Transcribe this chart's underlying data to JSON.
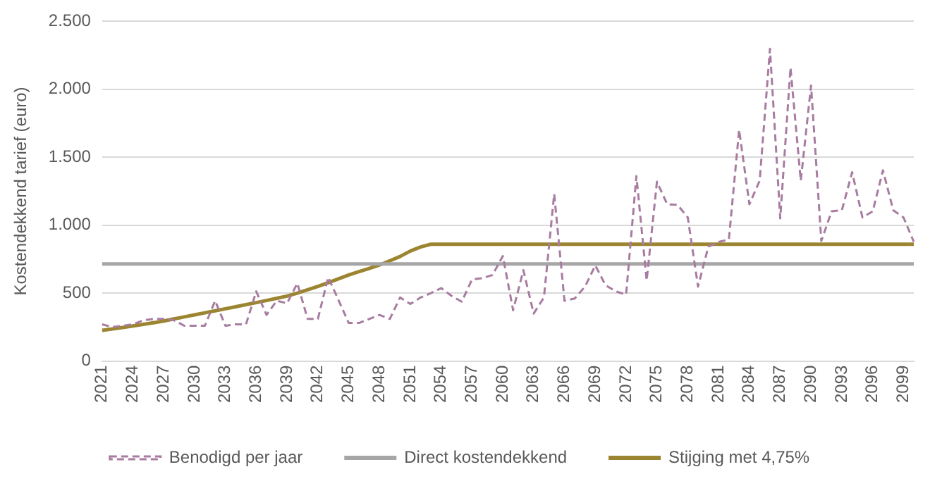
{
  "chart_data": {
    "type": "line",
    "ylabel": "Kostendekkend tarief (euro)",
    "categories": [
      "2021",
      null,
      null,
      "2024",
      null,
      null,
      "2027",
      null,
      null,
      "2030",
      null,
      null,
      "2033",
      null,
      null,
      "2036",
      null,
      null,
      "2039",
      null,
      null,
      "2042",
      null,
      null,
      "2045",
      null,
      null,
      "2048",
      null,
      null,
      "2051",
      null,
      null,
      "2054",
      null,
      null,
      "2057",
      null,
      null,
      "2060",
      null,
      null,
      "2063",
      null,
      null,
      "2066",
      null,
      null,
      "2069",
      null,
      null,
      "2072",
      null,
      null,
      "2075",
      null,
      null,
      "2078",
      null,
      null,
      "2081",
      null,
      null,
      "2084",
      null,
      null,
      "2087",
      null,
      null,
      "2090",
      null,
      null,
      "2093",
      null,
      null,
      "2096",
      null,
      null,
      "2099",
      null
    ],
    "series": [
      {
        "name": "Benodigd per jaar",
        "color": "#a87ca0",
        "line_style": "dashed",
        "values": [
          270,
          250,
          260,
          270,
          300,
          310,
          310,
          300,
          260,
          260,
          260,
          444,
          260,
          270,
          270,
          513,
          340,
          444,
          425,
          572,
          310,
          310,
          617,
          450,
          280,
          280,
          310,
          340,
          310,
          468,
          420,
          468,
          500,
          537,
          480,
          437,
          600,
          610,
          634,
          773,
          374,
          669,
          350,
          468,
          1230,
          444,
          461,
          548,
          704,
          558,
          513,
          489,
          1362,
          593,
          1320,
          1154,
          1150,
          1057,
          548,
          842,
          877,
          894,
          1702,
          1154,
          1328,
          2298,
          1050,
          2160,
          1328,
          2028,
          884,
          1102,
          1110,
          1390,
          1057,
          1102,
          1404,
          1110,
          1057,
          877
        ]
      },
      {
        "name": "Direct kostendekkend",
        "color": "#a6a6a6",
        "line_style": "solid",
        "values": [
          715,
          715,
          715,
          715,
          715,
          715,
          715,
          715,
          715,
          715,
          715,
          715,
          715,
          715,
          715,
          715,
          715,
          715,
          715,
          715,
          715,
          715,
          715,
          715,
          715,
          715,
          715,
          715,
          715,
          715,
          715,
          715,
          715,
          715,
          715,
          715,
          715,
          715,
          715,
          715,
          715,
          715,
          715,
          715,
          715,
          715,
          715,
          715,
          715,
          715,
          715,
          715,
          715,
          715,
          715,
          715,
          715,
          715,
          715,
          715,
          715,
          715,
          715,
          715,
          715,
          715,
          715,
          715,
          715,
          715,
          715,
          715,
          715,
          715,
          715,
          715,
          715,
          715,
          715,
          715
        ]
      },
      {
        "name": "Stijging met 4,75%",
        "color": "#9c8530",
        "line_style": "solid",
        "values": [
          226,
          236,
          247,
          258,
          270,
          282,
          295,
          310,
          325,
          340,
          355,
          370,
          385,
          400,
          415,
          430,
          446,
          462,
          478,
          500,
          525,
          550,
          577,
          605,
          634,
          658,
          682,
          707,
          738,
          770,
          810,
          840,
          860,
          860,
          860,
          860,
          860,
          860,
          860,
          860,
          860,
          860,
          860,
          860,
          860,
          860,
          860,
          860,
          860,
          860,
          860,
          860,
          860,
          860,
          860,
          860,
          860,
          860,
          860,
          860,
          860,
          860,
          860,
          860,
          860,
          860,
          860,
          860,
          860,
          860,
          860,
          860,
          860,
          860,
          860,
          860,
          860,
          860,
          860,
          860
        ]
      }
    ],
    "ylim": [
      0,
      2500
    ],
    "yticks": [
      0,
      {
        "value": 500,
        "label": "500"
      },
      {
        "value": 1000,
        "label": "1.000"
      },
      {
        "value": 1500,
        "label": "1.500"
      },
      {
        "value": 2000,
        "label": "2.000"
      },
      {
        "value": 2500,
        "label": "2.500"
      }
    ],
    "grid": "y",
    "legend": "bottom",
    "marker": "none"
  }
}
